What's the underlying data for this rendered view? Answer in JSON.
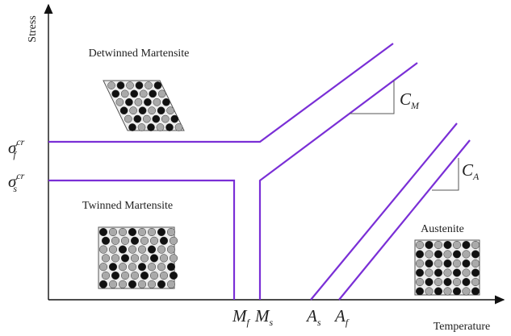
{
  "axes": {
    "y_label": "Stress",
    "x_label": "Temperature"
  },
  "regions": {
    "detwinned": "Detwinned Martensite",
    "twinned": "Twinned Martensite",
    "austenite": "Austenite"
  },
  "stress_levels": [
    {
      "base": "σ",
      "sub": "f",
      "sup": "cr"
    },
    {
      "base": "σ",
      "sub": "s",
      "sup": "cr"
    }
  ],
  "temperatures": [
    {
      "base": "M",
      "sub": "f"
    },
    {
      "base": "M",
      "sub": "s"
    },
    {
      "base": "A",
      "sub": "s"
    },
    {
      "base": "A",
      "sub": "f"
    }
  ],
  "slopes": [
    {
      "base": "C",
      "sub": "M"
    },
    {
      "base": "C",
      "sub": "A"
    }
  ]
}
